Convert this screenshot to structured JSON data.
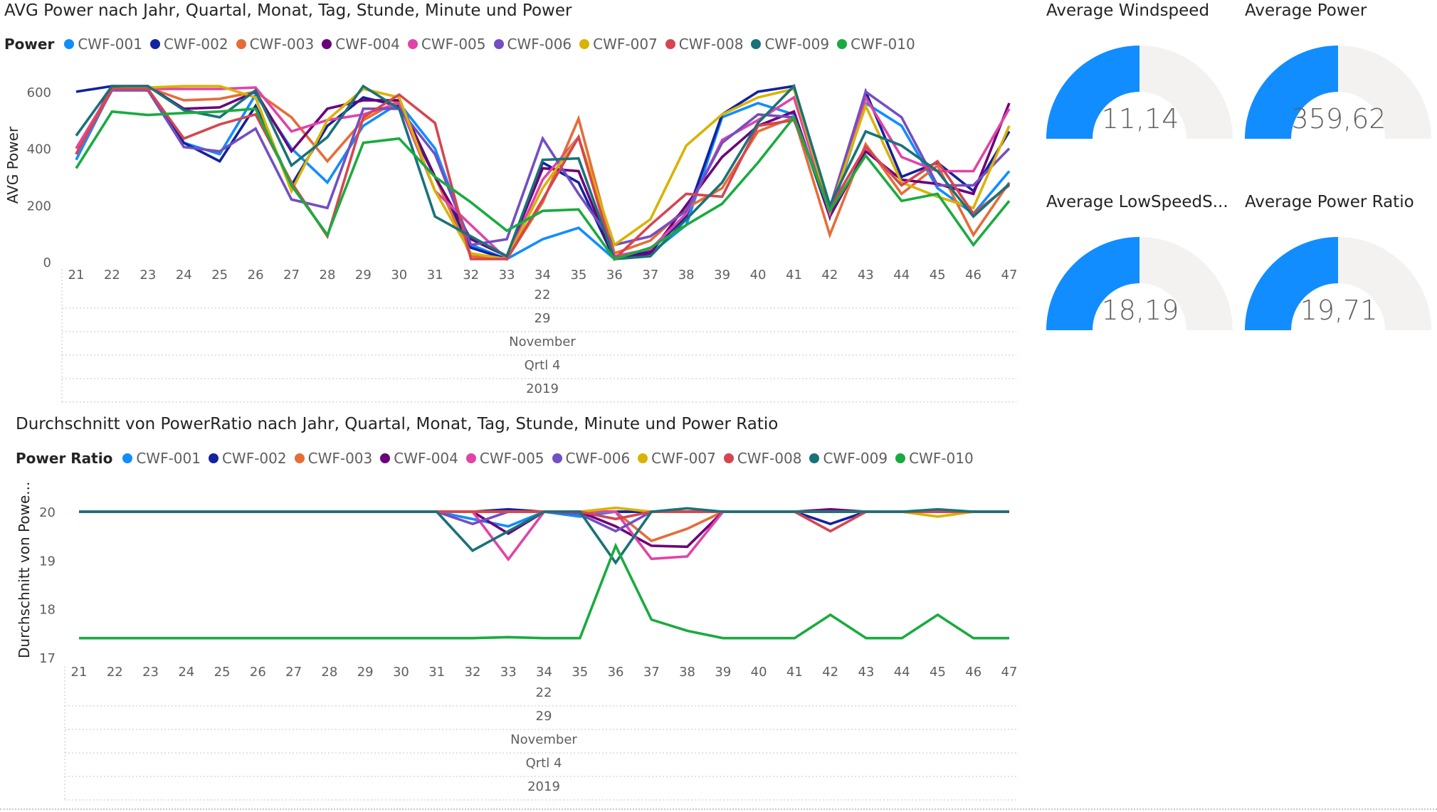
{
  "charts": {
    "power": {
      "title": "AVG Power nach Jahr, Quartal, Monat, Tag, Stunde, Minute und Power",
      "legend_title": "Power",
      "ylabel": "AVG Power",
      "y_ticks": [
        "0",
        "200",
        "400",
        "600"
      ],
      "hierarchy": [
        "22",
        "29",
        "November",
        "Qrtl 4",
        "2019"
      ]
    },
    "ratio": {
      "title": "Durchschnitt von PowerRatio nach Jahr, Quartal, Monat, Tag, Stunde, Minute und Power Ratio",
      "legend_title": "Power Ratio",
      "ylabel": "Durchschnitt von Powe...",
      "y_ticks": [
        "17",
        "18",
        "19",
        "20"
      ],
      "hierarchy": [
        "22",
        "29",
        "November",
        "Qrtl 4",
        "2019"
      ]
    }
  },
  "gauges": [
    {
      "title": "Average Windspeed",
      "value": "11,14",
      "fill": 0.5
    },
    {
      "title": "Average Power",
      "value": "359,62",
      "fill": 0.5
    },
    {
      "title": "Average LowSpeedS...",
      "value": "18,19",
      "fill": 0.5
    },
    {
      "title": "Average Power Ratio",
      "value": "19,71",
      "fill": 0.5
    }
  ],
  "chart_data": [
    {
      "type": "line",
      "title": "AVG Power nach Jahr, Quartal, Monat, Tag, Stunde, Minute und Power",
      "xlabel": "",
      "ylabel": "AVG Power",
      "ylim": [
        0,
        640
      ],
      "grid": false,
      "legend": "top-left",
      "x": [
        21,
        22,
        23,
        24,
        25,
        26,
        27,
        28,
        29,
        30,
        31,
        32,
        33,
        34,
        35,
        36,
        37,
        38,
        39,
        40,
        41,
        42,
        43,
        44,
        45,
        46,
        47
      ],
      "series": [
        {
          "name": "CWF-001",
          "color": "#118DFF",
          "values": [
            360,
            610,
            605,
            420,
            380,
            590,
            400,
            280,
            480,
            560,
            400,
            60,
            10,
            80,
            120,
            10,
            30,
            130,
            510,
            560,
            520,
            160,
            560,
            480,
            260,
            170,
            320
          ]
        },
        {
          "name": "CWF-002",
          "color": "#12239E",
          "values": [
            600,
            620,
            610,
            420,
            355,
            550,
            270,
            480,
            580,
            550,
            300,
            50,
            10,
            350,
            280,
            10,
            40,
            160,
            520,
            600,
            620,
            160,
            600,
            300,
            350,
            250,
            460
          ]
        },
        {
          "name": "CWF-003",
          "color": "#E66C37",
          "values": [
            400,
            610,
            615,
            570,
            575,
            600,
            510,
            355,
            500,
            570,
            300,
            20,
            10,
            210,
            505,
            30,
            75,
            190,
            260,
            460,
            510,
            95,
            415,
            240,
            340,
            95,
            280
          ]
        },
        {
          "name": "CWF-004",
          "color": "#6B007B",
          "values": [
            380,
            620,
            620,
            540,
            545,
            600,
            390,
            540,
            570,
            570,
            300,
            80,
            20,
            330,
            320,
            10,
            30,
            200,
            370,
            480,
            530,
            160,
            390,
            290,
            275,
            240,
            560
          ]
        },
        {
          "name": "CWF-005",
          "color": "#E044A7",
          "values": [
            400,
            610,
            610,
            610,
            610,
            615,
            460,
            500,
            520,
            560,
            250,
            130,
            10,
            290,
            440,
            20,
            45,
            170,
            430,
            500,
            580,
            170,
            580,
            370,
            320,
            320,
            540
          ]
        },
        {
          "name": "CWF-006",
          "color": "#744EC2",
          "values": [
            380,
            605,
            605,
            405,
            390,
            470,
            220,
            190,
            540,
            540,
            380,
            60,
            80,
            435,
            240,
            60,
            90,
            180,
            420,
            520,
            510,
            190,
            600,
            510,
            270,
            270,
            400
          ]
        },
        {
          "name": "CWF-007",
          "color": "#D9B300",
          "values": [
            380,
            610,
            615,
            620,
            620,
            580,
            250,
            500,
            610,
            580,
            250,
            30,
            10,
            260,
            440,
            60,
            150,
            410,
            520,
            580,
            610,
            180,
            550,
            280,
            230,
            190,
            480
          ]
        },
        {
          "name": "CWF-008",
          "color": "#D64550",
          "values": [
            380,
            610,
            610,
            435,
            485,
            520,
            280,
            90,
            510,
            590,
            490,
            10,
            10,
            220,
            440,
            10,
            130,
            240,
            230,
            480,
            500,
            190,
            405,
            270,
            355,
            170,
            270
          ]
        },
        {
          "name": "CWF-009",
          "color": "#197278",
          "values": [
            445,
            620,
            620,
            535,
            510,
            605,
            340,
            440,
            620,
            540,
            160,
            90,
            20,
            360,
            365,
            10,
            20,
            150,
            280,
            490,
            620,
            200,
            460,
            410,
            320,
            160,
            275
          ]
        },
        {
          "name": "CWF-010",
          "color": "#1AAB40",
          "values": [
            330,
            530,
            518,
            525,
            530,
            540,
            270,
            95,
            420,
            435,
            300,
            210,
            110,
            180,
            185,
            10,
            50,
            130,
            205,
            350,
            510,
            180,
            375,
            215,
            240,
            60,
            215
          ]
        }
      ]
    },
    {
      "type": "line",
      "title": "Durchschnitt von PowerRatio nach Jahr, Quartal, Monat, Tag, Stunde, Minute und Power Ratio",
      "xlabel": "",
      "ylabel": "Durchschnitt von Powe...",
      "ylim": [
        17,
        20.25
      ],
      "grid": false,
      "legend": "top-left",
      "x": [
        21,
        22,
        23,
        24,
        25,
        26,
        27,
        28,
        29,
        30,
        31,
        32,
        33,
        34,
        35,
        36,
        37,
        38,
        39,
        40,
        41,
        42,
        43,
        44,
        45,
        46,
        47
      ],
      "series": [
        {
          "name": "CWF-001",
          "color": "#118DFF",
          "values": [
            20,
            20,
            20,
            20,
            20,
            20,
            20,
            20,
            20,
            20,
            20,
            19.85,
            19.7,
            20,
            19.9,
            20,
            20,
            20,
            20,
            20,
            20,
            20,
            20,
            20,
            20,
            20,
            20
          ]
        },
        {
          "name": "CWF-002",
          "color": "#12239E",
          "values": [
            20,
            20,
            20,
            20,
            20,
            20,
            20,
            20,
            20,
            20,
            20,
            20,
            20.05,
            20,
            20,
            20,
            20,
            20,
            20,
            20,
            20,
            19.75,
            20,
            20,
            20,
            20,
            20
          ]
        },
        {
          "name": "CWF-003",
          "color": "#E66C37",
          "values": [
            20,
            20,
            20,
            20,
            20,
            20,
            20,
            20,
            20,
            20,
            20,
            20,
            20,
            20,
            20,
            20,
            19.4,
            19.65,
            20,
            20,
            20,
            20,
            20,
            20,
            20,
            20,
            20
          ]
        },
        {
          "name": "CWF-004",
          "color": "#6B007B",
          "values": [
            20,
            20,
            20,
            20,
            20,
            20,
            20,
            20,
            20,
            20,
            20,
            20,
            19.55,
            20,
            20,
            19.7,
            19.3,
            19.28,
            20,
            20,
            20,
            20.05,
            20,
            20,
            20,
            20,
            20
          ]
        },
        {
          "name": "CWF-005",
          "color": "#E044A7",
          "values": [
            20,
            20,
            20,
            20,
            20,
            20,
            20,
            20,
            20,
            20,
            20,
            20,
            19.02,
            20,
            20,
            20,
            19.03,
            19.08,
            20,
            20,
            20,
            20,
            20,
            20,
            20,
            20,
            20
          ]
        },
        {
          "name": "CWF-006",
          "color": "#744EC2",
          "values": [
            20,
            20,
            20,
            20,
            20,
            20,
            20,
            20,
            20,
            20,
            20,
            19.75,
            20,
            20,
            19.95,
            19.6,
            20,
            20,
            20,
            20,
            20,
            20,
            20,
            20,
            20,
            20,
            20
          ]
        },
        {
          "name": "CWF-007",
          "color": "#D9B300",
          "values": [
            20,
            20,
            20,
            20,
            20,
            20,
            20,
            20,
            20,
            20,
            20,
            20,
            20,
            20,
            20,
            20.08,
            20,
            20,
            20,
            20,
            20,
            20,
            20,
            20,
            19.9,
            20,
            20
          ]
        },
        {
          "name": "CWF-008",
          "color": "#D64550",
          "values": [
            20,
            20,
            20,
            20,
            20,
            20,
            20,
            20,
            20,
            20,
            20,
            20,
            20,
            20,
            20,
            19.85,
            20,
            20,
            20,
            20,
            20,
            19.6,
            20,
            20,
            20,
            20,
            20
          ]
        },
        {
          "name": "CWF-009",
          "color": "#197278",
          "values": [
            20,
            20,
            20,
            20,
            20,
            20,
            20,
            20,
            20,
            20,
            20,
            19.2,
            19.6,
            20,
            20,
            18.95,
            20,
            20.07,
            20,
            20,
            20,
            20,
            20,
            20,
            20.05,
            20,
            20
          ]
        },
        {
          "name": "CWF-010",
          "color": "#1AAB40",
          "values": [
            17.4,
            17.4,
            17.4,
            17.4,
            17.4,
            17.4,
            17.4,
            17.4,
            17.4,
            17.4,
            17.4,
            17.4,
            17.42,
            17.4,
            17.4,
            19.3,
            17.78,
            17.55,
            17.4,
            17.4,
            17.4,
            17.88,
            17.4,
            17.4,
            17.88,
            17.4,
            17.4
          ]
        }
      ]
    }
  ]
}
